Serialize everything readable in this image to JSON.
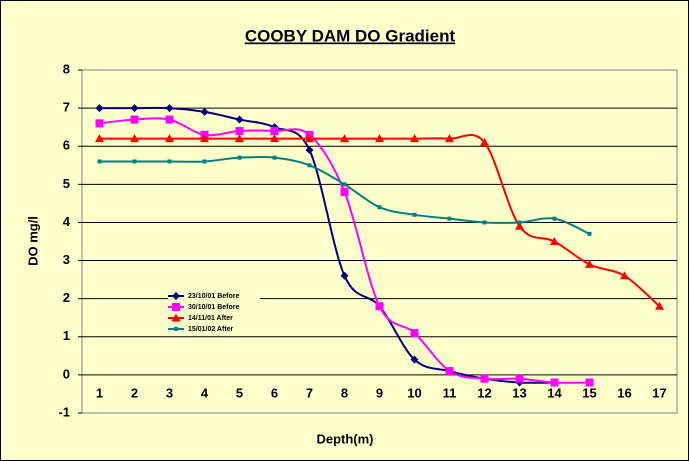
{
  "chart_data": {
    "type": "line",
    "title": "COOBY DAM DO Gradient",
    "x_label": "Depth(m)",
    "y_label": "DO mg/l",
    "categories": [
      "1",
      "2",
      "3",
      "4",
      "5",
      "6",
      "7",
      "8",
      "9",
      "10",
      "11",
      "12",
      "13",
      "14",
      "15",
      "16",
      "17"
    ],
    "ylim": [
      -1,
      8
    ],
    "yticks": [
      -1,
      0,
      1,
      2,
      3,
      4,
      5,
      6,
      7,
      8
    ],
    "grid": true,
    "smooth": true,
    "legend": "left",
    "series": [
      {
        "name": "23/10/01 Before",
        "color": "#000080",
        "marker": "diamond",
        "values": [
          7,
          7,
          7,
          6.9,
          6.7,
          6.5,
          5.9,
          2.6,
          1.8,
          0.4,
          0.1,
          -0.1,
          -0.2,
          -0.2,
          null,
          null,
          null
        ]
      },
      {
        "name": "30/10/01 Before",
        "color": "#FF00FF",
        "marker": "square",
        "values": [
          6.6,
          6.7,
          6.7,
          6.3,
          6.4,
          6.4,
          6.3,
          4.8,
          1.8,
          1.1,
          0.1,
          -0.1,
          -0.1,
          -0.2,
          -0.2,
          null,
          null
        ]
      },
      {
        "name": "14/11/01 After",
        "color": "#FF0000",
        "marker": "triangle",
        "values": [
          6.2,
          6.2,
          6.2,
          6.2,
          6.2,
          6.2,
          6.2,
          6.2,
          6.2,
          6.2,
          6.2,
          6.1,
          3.9,
          3.5,
          2.9,
          2.6,
          1.8
        ]
      },
      {
        "name": "15/01/02 After",
        "color": "#008080",
        "marker": "smallsquare",
        "values": [
          5.6,
          5.6,
          5.6,
          5.6,
          5.7,
          5.7,
          5.5,
          5.0,
          4.4,
          4.2,
          4.1,
          4.0,
          4.0,
          4.1,
          3.7,
          null,
          null
        ]
      }
    ]
  }
}
